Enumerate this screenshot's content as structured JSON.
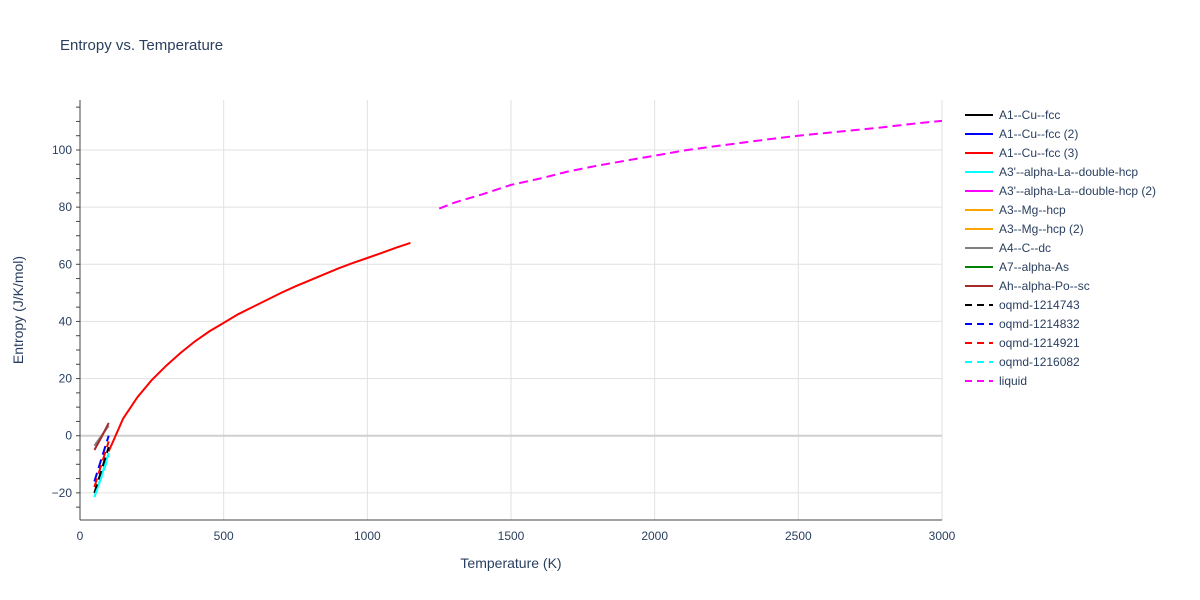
{
  "chart_data": {
    "type": "line",
    "title": "Entropy vs. Temperature",
    "xlabel": "Temperature (K)",
    "ylabel": "Entropy (J/K/mol)",
    "xlim": [
      0,
      3000
    ],
    "ylim": [
      -29.5,
      117.5
    ],
    "x_ticks": [
      0,
      500,
      1000,
      1500,
      2000,
      2500,
      3000
    ],
    "y_ticks": [
      -20,
      0,
      20,
      40,
      60,
      80,
      100
    ],
    "grid": true,
    "legend_position": "right",
    "series": [
      {
        "name": "A1--Cu--fcc",
        "color": "#000000",
        "dash": "solid",
        "x": [],
        "y": []
      },
      {
        "name": "A1--Cu--fcc (2)",
        "color": "#0000ff",
        "dash": "solid",
        "x": [],
        "y": []
      },
      {
        "name": "A1--Cu--fcc (3)",
        "color": "#ff0000",
        "dash": "solid",
        "x": [
          100,
          150,
          200,
          250,
          300,
          350,
          400,
          450,
          500,
          550,
          600,
          650,
          700,
          750,
          800,
          850,
          900,
          950,
          1000,
          1050,
          1100,
          1150
        ],
        "y": [
          -5.5,
          6,
          13.5,
          19.5,
          24.5,
          29,
          33,
          36.5,
          39.5,
          42.5,
          45,
          47.5,
          50,
          52.3,
          54.4,
          56.5,
          58.6,
          60.5,
          62.2,
          64,
          65.8,
          67.5
        ]
      },
      {
        "name": "A3'--alpha-La--double-hcp",
        "color": "#00ffff",
        "dash": "solid",
        "x": [
          50,
          75,
          100
        ],
        "y": [
          -21.5,
          -14,
          -6
        ]
      },
      {
        "name": "A3'--alpha-La--double-hcp (2)",
        "color": "#ff00ff",
        "dash": "solid",
        "x": [],
        "y": []
      },
      {
        "name": "A3--Mg--hcp",
        "color": "#ffa500",
        "dash": "solid",
        "x": [],
        "y": []
      },
      {
        "name": "A3--Mg--hcp (2)",
        "color": "#ffa500",
        "dash": "solid",
        "x": [],
        "y": []
      },
      {
        "name": "A4--C--dc",
        "color": "#808080",
        "dash": "solid",
        "x": [
          50,
          75,
          100
        ],
        "y": [
          -3.5,
          0,
          3.5
        ]
      },
      {
        "name": "A7--alpha-As",
        "color": "#008000",
        "dash": "solid",
        "x": [],
        "y": []
      },
      {
        "name": "Ah--alpha-Po--sc",
        "color": "#a52a2a",
        "dash": "solid",
        "x": [
          50,
          75,
          100
        ],
        "y": [
          -5,
          -0.5,
          4.5
        ]
      },
      {
        "name": "oqmd-1214743",
        "color": "#000000",
        "dash": "dash",
        "x": [
          50,
          75,
          100
        ],
        "y": [
          -20,
          -12,
          -4
        ]
      },
      {
        "name": "oqmd-1214832",
        "color": "#0000ff",
        "dash": "dash",
        "x": [
          50,
          75,
          100
        ],
        "y": [
          -16,
          -8,
          0
        ]
      },
      {
        "name": "oqmd-1214921",
        "color": "#ff0000",
        "dash": "dash",
        "x": [
          50,
          75,
          100
        ],
        "y": [
          -18,
          -10,
          -2
        ]
      },
      {
        "name": "oqmd-1216082",
        "color": "#00ffff",
        "dash": "dash",
        "x": [
          50,
          75,
          100
        ],
        "y": [
          -21.5,
          -14.5,
          -7
        ]
      },
      {
        "name": "liquid",
        "color": "#ff00ff",
        "dash": "dash",
        "x": [
          1250,
          1300,
          1400,
          1500,
          1600,
          1700,
          1800,
          1900,
          2000,
          2100,
          2200,
          2300,
          2400,
          2500,
          2600,
          2700,
          2800,
          2900,
          3000
        ],
        "y": [
          79.5,
          81.5,
          84.5,
          87.8,
          90,
          92.5,
          94.5,
          96.3,
          98,
          99.8,
          101.2,
          102.5,
          103.8,
          105,
          106,
          107,
          108,
          109.2,
          110.2
        ]
      }
    ]
  }
}
